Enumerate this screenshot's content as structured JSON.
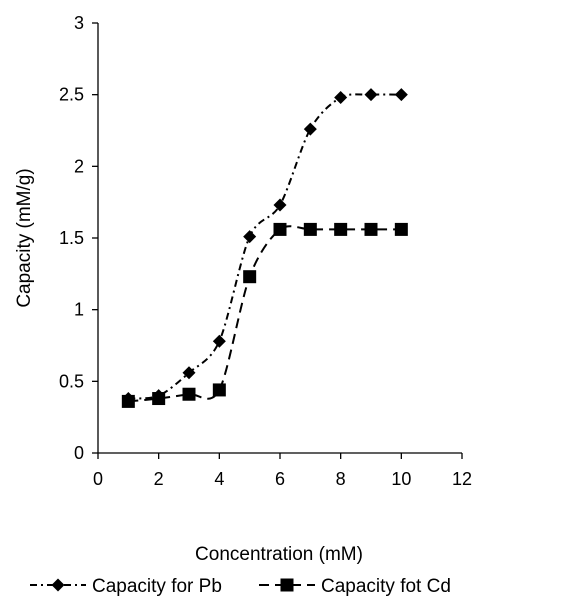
{
  "chart_data": {
    "type": "line",
    "title": "",
    "xlabel": "Concentration (mM)",
    "ylabel": "Capacity (mM/g)",
    "xlim": [
      0,
      12
    ],
    "ylim": [
      0,
      3
    ],
    "x_ticks": [
      0,
      2,
      4,
      6,
      8,
      10,
      12
    ],
    "y_ticks": [
      0,
      0.5,
      1,
      1.5,
      2,
      2.5,
      3
    ],
    "x_tick_labels": [
      "0",
      "2",
      "4",
      "6",
      "8",
      "10",
      "12"
    ],
    "y_tick_labels": [
      "0",
      "0.5",
      "1",
      "1.5",
      "2",
      "2.5",
      "3"
    ],
    "grid": false,
    "legend_position": "bottom",
    "series": [
      {
        "name": "Capacity for Pb",
        "marker": "diamond",
        "line_style": "dash-dot",
        "color": "#000000",
        "x": [
          1,
          2,
          3,
          4,
          5,
          6,
          7,
          8,
          9,
          10
        ],
        "y": [
          0.38,
          0.4,
          0.56,
          0.78,
          1.51,
          1.73,
          2.26,
          2.48,
          2.5,
          2.5
        ]
      },
      {
        "name": "Capacity fot Cd",
        "marker": "square",
        "line_style": "dashed",
        "color": "#000000",
        "x": [
          1,
          2,
          3,
          4,
          5,
          6,
          7,
          8,
          9,
          10
        ],
        "y": [
          0.36,
          0.38,
          0.41,
          0.44,
          1.23,
          1.56,
          1.56,
          1.56,
          1.56,
          1.56
        ]
      }
    ]
  }
}
